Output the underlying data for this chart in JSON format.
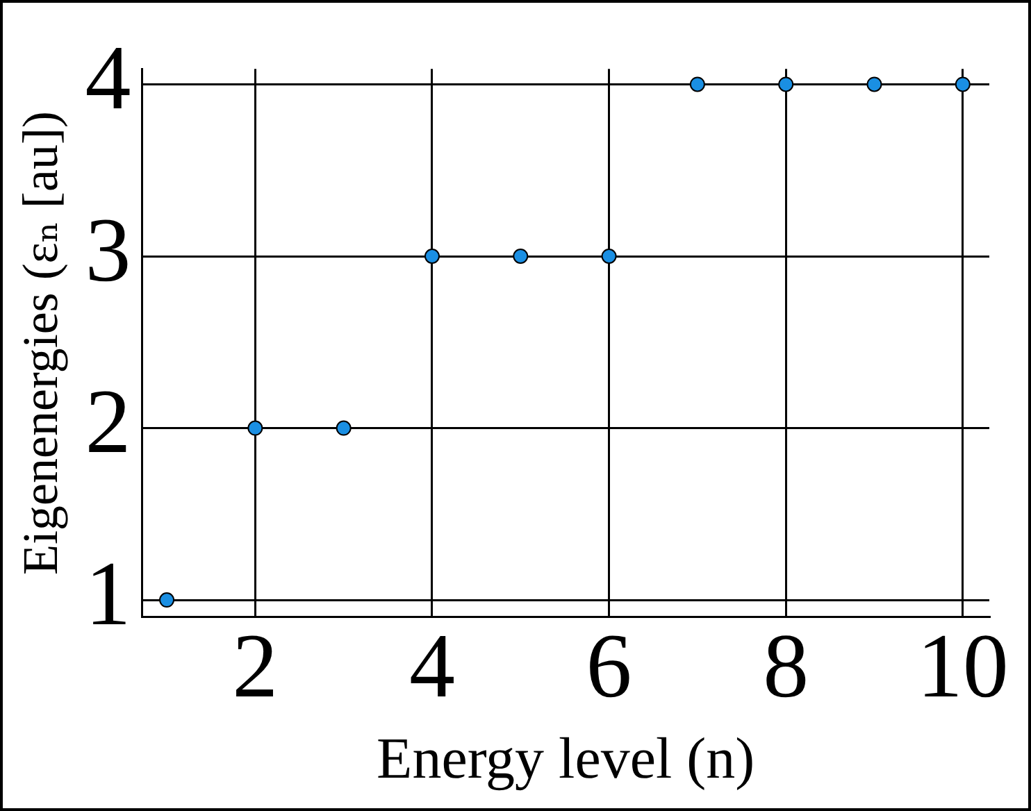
{
  "chart_data": {
    "type": "scatter",
    "xlabel": "Energy level (n)",
    "ylabel": "Eigenenergies (εₙ [au])",
    "x": [
      1,
      2,
      3,
      4,
      5,
      6,
      7,
      8,
      9,
      10
    ],
    "series": [
      {
        "color": "#1a8fe3",
        "values": [
          1,
          2,
          2,
          3,
          3,
          3,
          4,
          4,
          4,
          4
        ]
      }
    ],
    "xlim": [
      0.72,
      10.3
    ],
    "ylim": [
      0.9,
      4.09
    ],
    "xticks": [
      2,
      4,
      6,
      8,
      10
    ],
    "yticks": [
      1,
      2,
      3,
      4
    ],
    "grid": true,
    "legend": false,
    "marker": "circle"
  }
}
